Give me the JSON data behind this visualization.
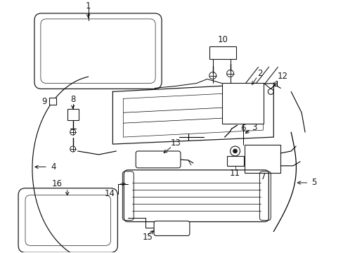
{
  "bg_color": "#ffffff",
  "line_color": "#1a1a1a",
  "fig_width": 4.89,
  "fig_height": 3.6,
  "dpi": 100,
  "parts": {
    "label_fontsize": 8.5,
    "lw": 0.8
  }
}
